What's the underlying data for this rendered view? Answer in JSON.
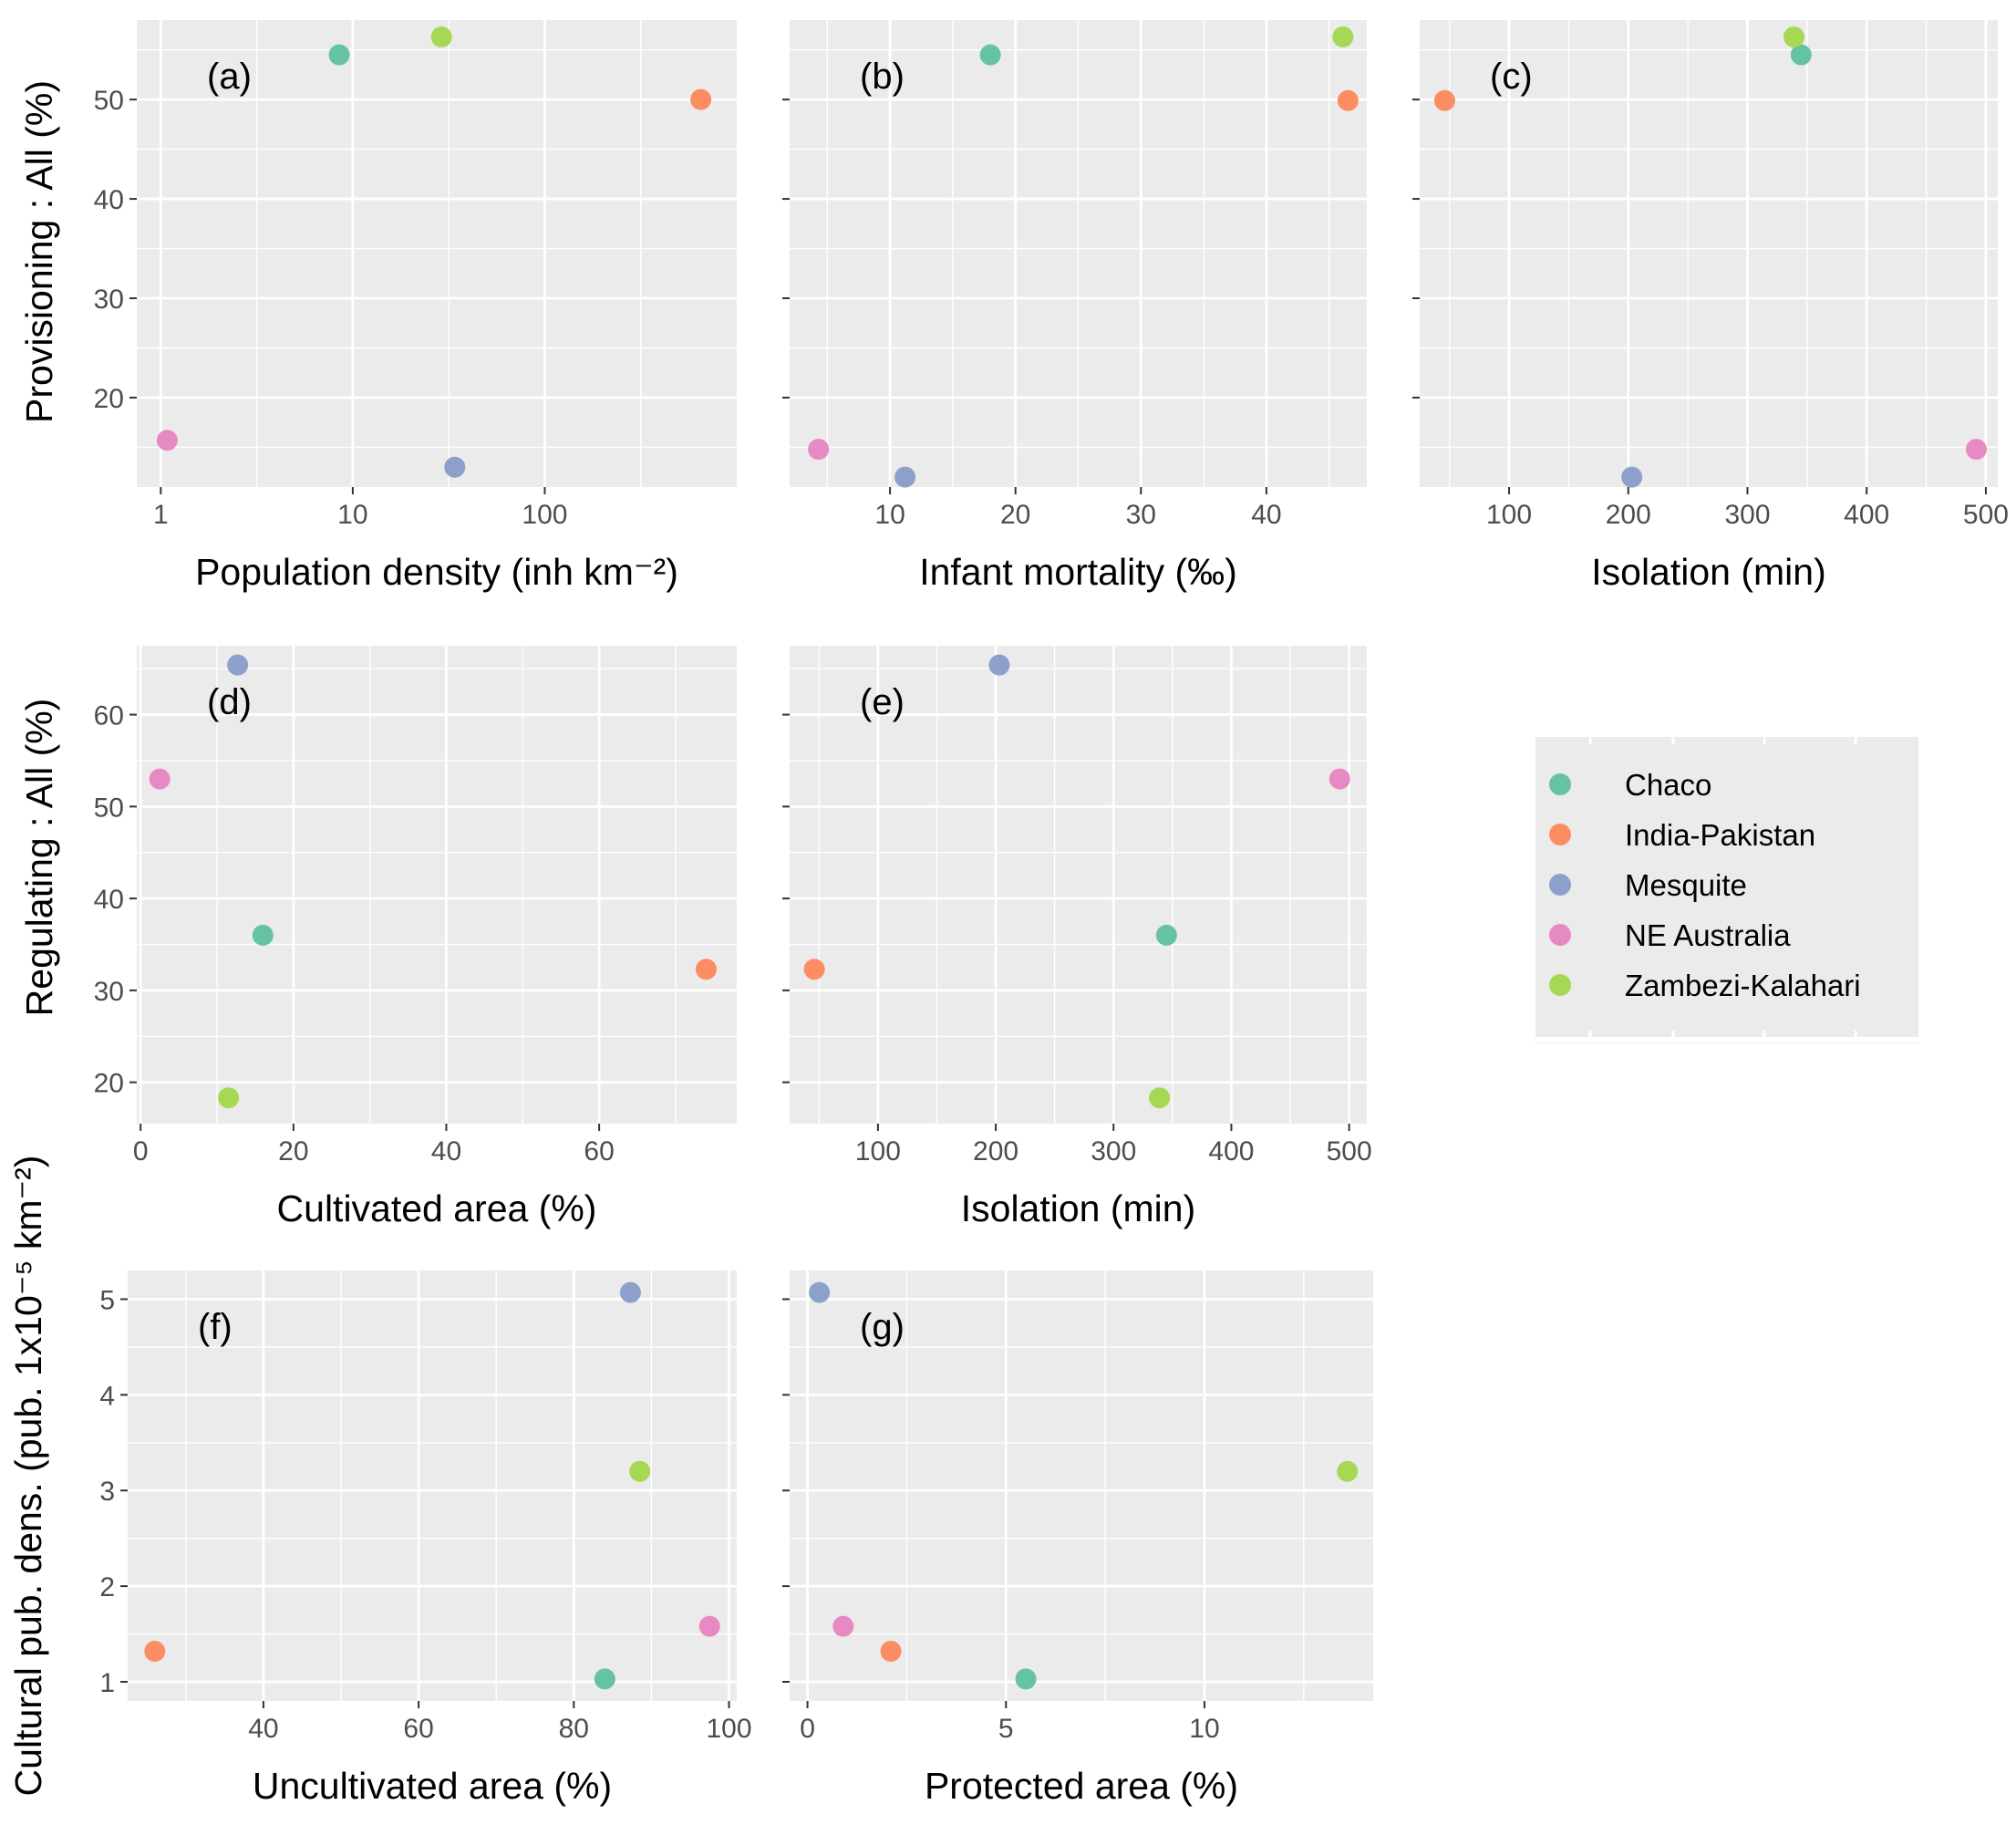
{
  "colors": {
    "Chaco": "#66c2a5",
    "India-Pakistan": "#fc8d62",
    "Mesquite": "#8da0cb",
    "NE Australia": "#e78ac3",
    "Zambezi-Kalahari": "#a6d854",
    "panel_bg": "#ebebeb",
    "grid": "#ffffff"
  },
  "legend": {
    "items": [
      "Chaco",
      "India-Pakistan",
      "Mesquite",
      "NE Australia",
      "Zambezi-Kalahari"
    ]
  },
  "row_labels": {
    "provisioning": "Provisioning : All (%)",
    "regulating": "Regulating : All (%)",
    "cultural": "Cultural pub. dens. (pub. 1x10⁻⁵ km⁻²)"
  },
  "chart_data": [
    {
      "id": "a",
      "tag": "(a)",
      "type": "scatter",
      "row": "provisioning",
      "xlabel": "Population density (inh km⁻²)",
      "xscale": "log",
      "xlim": [
        0.75,
        1000
      ],
      "ylim": [
        11,
        58
      ],
      "xticks": [
        1,
        10,
        100
      ],
      "xtick_labels": [
        "1",
        "10",
        "100"
      ],
      "yticks": [
        20,
        30,
        40,
        50
      ],
      "ytick_labels": [
        "20",
        "30",
        "40",
        "50"
      ],
      "points": [
        {
          "series": "Chaco",
          "x": 8.5,
          "y": 54.5
        },
        {
          "series": "India-Pakistan",
          "x": 650,
          "y": 50.0
        },
        {
          "series": "Mesquite",
          "x": 34,
          "y": 13.0
        },
        {
          "series": "NE Australia",
          "x": 1.08,
          "y": 15.7
        },
        {
          "series": "Zambezi-Kalahari",
          "x": 29,
          "y": 56.3
        }
      ]
    },
    {
      "id": "b",
      "tag": "(b)",
      "type": "scatter",
      "row": "provisioning",
      "xlabel": "Infant mortality (‰)",
      "xscale": "linear",
      "xlim": [
        2,
        48
      ],
      "ylim": [
        11,
        58
      ],
      "xticks": [
        10,
        20,
        30,
        40
      ],
      "xtick_labels": [
        "10",
        "20",
        "30",
        "40"
      ],
      "yticks": [
        20,
        30,
        40,
        50
      ],
      "ytick_labels": [],
      "points": [
        {
          "series": "Chaco",
          "x": 18,
          "y": 54.5
        },
        {
          "series": "India-Pakistan",
          "x": 46.5,
          "y": 49.9
        },
        {
          "series": "Mesquite",
          "x": 11.2,
          "y": 12.0
        },
        {
          "series": "NE Australia",
          "x": 4.3,
          "y": 14.8
        },
        {
          "series": "Zambezi-Kalahari",
          "x": 46.1,
          "y": 56.3
        }
      ]
    },
    {
      "id": "c",
      "tag": "(c)",
      "type": "scatter",
      "row": "provisioning",
      "xlabel": "Isolation (min)",
      "xscale": "linear",
      "xlim": [
        25,
        510
      ],
      "ylim": [
        11,
        58
      ],
      "xticks": [
        100,
        200,
        300,
        400,
        500
      ],
      "xtick_labels": [
        "100",
        "200",
        "300",
        "400",
        "500"
      ],
      "yticks": [
        20,
        30,
        40,
        50
      ],
      "ytick_labels": [],
      "points": [
        {
          "series": "Chaco",
          "x": 345,
          "y": 54.5
        },
        {
          "series": "India-Pakistan",
          "x": 46,
          "y": 49.9
        },
        {
          "series": "Mesquite",
          "x": 203,
          "y": 12.0
        },
        {
          "series": "NE Australia",
          "x": 492,
          "y": 14.8
        },
        {
          "series": "Zambezi-Kalahari",
          "x": 339,
          "y": 56.3
        }
      ]
    },
    {
      "id": "d",
      "tag": "(d)",
      "type": "scatter",
      "row": "regulating",
      "xlabel": "Cultivated area (%)",
      "xscale": "linear",
      "xlim": [
        -0.5,
        78
      ],
      "ylim": [
        15.5,
        67.5
      ],
      "xticks": [
        0,
        20,
        40,
        60
      ],
      "xtick_labels": [
        "0",
        "20",
        "40",
        "60"
      ],
      "yticks": [
        20,
        30,
        40,
        50,
        60
      ],
      "ytick_labels": [
        "20",
        "30",
        "40",
        "50",
        "60"
      ],
      "points": [
        {
          "series": "Chaco",
          "x": 16,
          "y": 36.0
        },
        {
          "series": "India-Pakistan",
          "x": 74,
          "y": 32.3
        },
        {
          "series": "Mesquite",
          "x": 12.7,
          "y": 65.4
        },
        {
          "series": "NE Australia",
          "x": 2.5,
          "y": 53.0
        },
        {
          "series": "Zambezi-Kalahari",
          "x": 11.5,
          "y": 18.3
        }
      ]
    },
    {
      "id": "e",
      "tag": "(e)",
      "type": "scatter",
      "row": "regulating",
      "xlabel": "Isolation (min)",
      "xscale": "linear",
      "xlim": [
        25,
        515
      ],
      "ylim": [
        15.5,
        67.5
      ],
      "xticks": [
        100,
        200,
        300,
        400,
        500
      ],
      "xtick_labels": [
        "100",
        "200",
        "300",
        "400",
        "500"
      ],
      "yticks": [
        20,
        30,
        40,
        50,
        60
      ],
      "ytick_labels": [],
      "points": [
        {
          "series": "Chaco",
          "x": 345,
          "y": 36.0
        },
        {
          "series": "India-Pakistan",
          "x": 46,
          "y": 32.3
        },
        {
          "series": "Mesquite",
          "x": 203,
          "y": 65.4
        },
        {
          "series": "NE Australia",
          "x": 492,
          "y": 53.0
        },
        {
          "series": "Zambezi-Kalahari",
          "x": 339,
          "y": 18.3
        }
      ]
    },
    {
      "id": "f",
      "tag": "(f)",
      "type": "scatter",
      "row": "cultural",
      "xlabel": "Uncultivated area (%)",
      "xscale": "linear",
      "xlim": [
        22.5,
        101
      ],
      "ylim": [
        0.8,
        5.3
      ],
      "xticks": [
        40,
        60,
        80,
        100
      ],
      "xtick_labels": [
        "40",
        "60",
        "80",
        "100"
      ],
      "yticks": [
        1,
        2,
        3,
        4,
        5
      ],
      "ytick_labels": [
        "1",
        "2",
        "3",
        "4",
        "5"
      ],
      "points": [
        {
          "series": "Chaco",
          "x": 84,
          "y": 1.03
        },
        {
          "series": "India-Pakistan",
          "x": 26,
          "y": 1.32
        },
        {
          "series": "Mesquite",
          "x": 87.3,
          "y": 5.07
        },
        {
          "series": "NE Australia",
          "x": 97.5,
          "y": 1.58
        },
        {
          "series": "Zambezi-Kalahari",
          "x": 88.5,
          "y": 3.2
        }
      ]
    },
    {
      "id": "g",
      "tag": "(g)",
      "type": "scatter",
      "row": "cultural",
      "xlabel": "Protected area (%)",
      "xscale": "linear",
      "xlim": [
        -0.45,
        14.25
      ],
      "ylim": [
        0.8,
        5.3
      ],
      "xticks": [
        0,
        5,
        10
      ],
      "xtick_labels": [
        "0",
        "5",
        "10"
      ],
      "yticks": [
        1,
        2,
        3,
        4,
        5
      ],
      "ytick_labels": [],
      "points": [
        {
          "series": "Chaco",
          "x": 5.5,
          "y": 1.03
        },
        {
          "series": "India-Pakistan",
          "x": 2.1,
          "y": 1.32
        },
        {
          "series": "Mesquite",
          "x": 0.3,
          "y": 5.07
        },
        {
          "series": "NE Australia",
          "x": 0.9,
          "y": 1.58
        },
        {
          "series": "Zambezi-Kalahari",
          "x": 13.6,
          "y": 3.2
        }
      ]
    }
  ]
}
